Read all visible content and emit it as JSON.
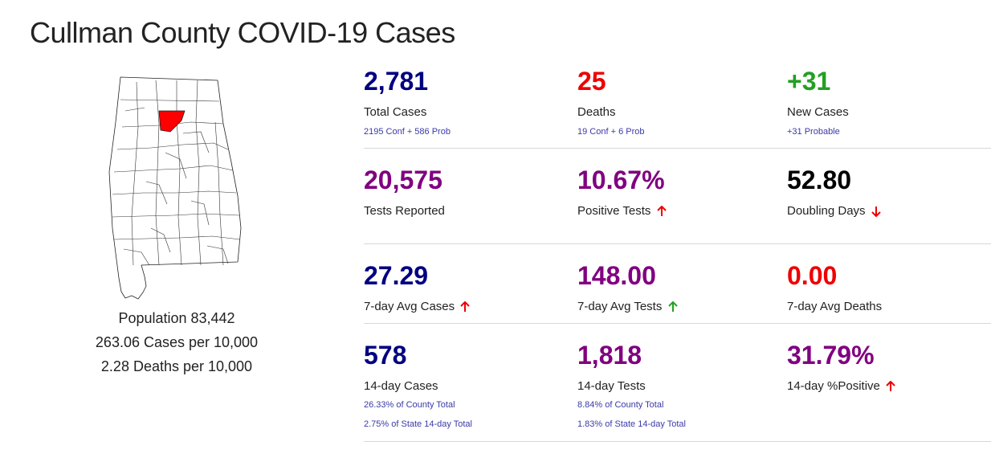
{
  "title": "Cullman County COVID-19 Cases",
  "colors": {
    "navy": "#000080",
    "red": "#ee0000",
    "green": "#22a022",
    "purple": "#800080",
    "black": "#000000",
    "highlight_county": "#ff0000"
  },
  "map": {
    "icon": "alabama-county-map-icon"
  },
  "population": {
    "line1": "Population 83,442",
    "line2": "263.06 Cases per 10,000",
    "line3": "2.28 Deaths per 10,000"
  },
  "stats": {
    "total_cases": {
      "value": "2,781",
      "label": "Total Cases",
      "sub": "2195 Conf + 586 Prob"
    },
    "deaths": {
      "value": "25",
      "label": "Deaths",
      "sub": "19 Conf + 6 Prob"
    },
    "new_cases": {
      "value": "+31",
      "label": "New Cases",
      "sub": "+31 Probable"
    },
    "tests_reported": {
      "value": "20,575",
      "label": "Tests Reported"
    },
    "positive_tests": {
      "value": "10.67%",
      "label": "Positive Tests",
      "trend": "up"
    },
    "doubling_days": {
      "value": "52.80",
      "label": "Doubling Days",
      "trend": "down"
    },
    "avg_cases_7": {
      "value": "27.29",
      "label": "7-day Avg Cases",
      "trend": "up"
    },
    "avg_tests_7": {
      "value": "148.00",
      "label": "7-day Avg Tests",
      "trend": "up"
    },
    "avg_deaths_7": {
      "value": "0.00",
      "label": "7-day Avg Deaths"
    },
    "cases_14": {
      "value": "578",
      "label": "14-day Cases",
      "sub1": "26.33% of County Total",
      "sub2": "2.75% of State 14-day Total"
    },
    "tests_14": {
      "value": "1,818",
      "label": "14-day Tests",
      "sub1": "8.84% of County Total",
      "sub2": "1.83% of State 14-day Total"
    },
    "positive_14": {
      "value": "31.79%",
      "label": "14-day %Positive",
      "trend": "up"
    }
  }
}
